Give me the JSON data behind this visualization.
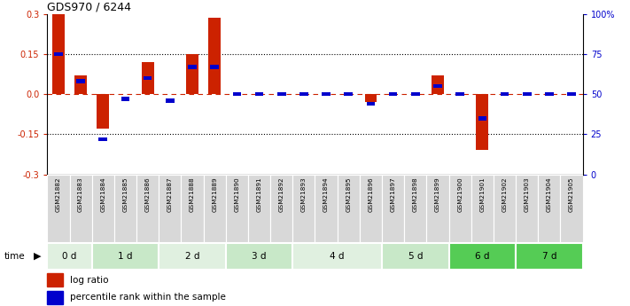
{
  "title": "GDS970 / 6244",
  "samples": [
    "GSM21882",
    "GSM21883",
    "GSM21884",
    "GSM21885",
    "GSM21886",
    "GSM21887",
    "GSM21888",
    "GSM21889",
    "GSM21890",
    "GSM21891",
    "GSM21892",
    "GSM21893",
    "GSM21894",
    "GSM21895",
    "GSM21896",
    "GSM21897",
    "GSM21898",
    "GSM21899",
    "GSM21900",
    "GSM21901",
    "GSM21902",
    "GSM21903",
    "GSM21904",
    "GSM21905"
  ],
  "log_ratios": [
    0.3,
    0.07,
    -0.13,
    0.0,
    0.12,
    0.0,
    0.15,
    0.285,
    0.0,
    0.0,
    0.0,
    0.0,
    0.0,
    0.0,
    -0.03,
    0.0,
    0.0,
    0.07,
    0.0,
    -0.21,
    0.0,
    0.0,
    0.0,
    0.0
  ],
  "percentile_ranks": [
    75,
    58,
    22,
    47,
    60,
    46,
    67,
    67,
    50,
    50,
    50,
    50,
    50,
    50,
    44,
    50,
    50,
    55,
    50,
    35,
    50,
    50,
    50,
    50
  ],
  "time_groups": [
    {
      "label": "0 d",
      "start": 0,
      "end": 2,
      "color": "#e0f0e0"
    },
    {
      "label": "1 d",
      "start": 2,
      "end": 5,
      "color": "#c8e8c8"
    },
    {
      "label": "2 d",
      "start": 5,
      "end": 8,
      "color": "#e0f0e0"
    },
    {
      "label": "3 d",
      "start": 8,
      "end": 11,
      "color": "#c8e8c8"
    },
    {
      "label": "4 d",
      "start": 11,
      "end": 15,
      "color": "#e0f0e0"
    },
    {
      "label": "5 d",
      "start": 15,
      "end": 18,
      "color": "#c8e8c8"
    },
    {
      "label": "6 d",
      "start": 18,
      "end": 21,
      "color": "#55cc55"
    },
    {
      "label": "7 d",
      "start": 21,
      "end": 24,
      "color": "#55cc55"
    }
  ],
  "ylim": [
    -0.3,
    0.3
  ],
  "y_left_ticks": [
    -0.3,
    -0.15,
    0.0,
    0.15,
    0.3
  ],
  "y_right_ticks": [
    0,
    25,
    50,
    75,
    100
  ],
  "y_right_labels": [
    "0",
    "25",
    "50",
    "75",
    "100%"
  ],
  "bar_color_red": "#cc2200",
  "bar_color_blue": "#0000cc",
  "zero_line_color": "#cc2200",
  "sample_cell_color": "#d8d8d8",
  "bar_width": 0.55,
  "legend_red": "log ratio",
  "legend_blue": "percentile rank within the sample"
}
